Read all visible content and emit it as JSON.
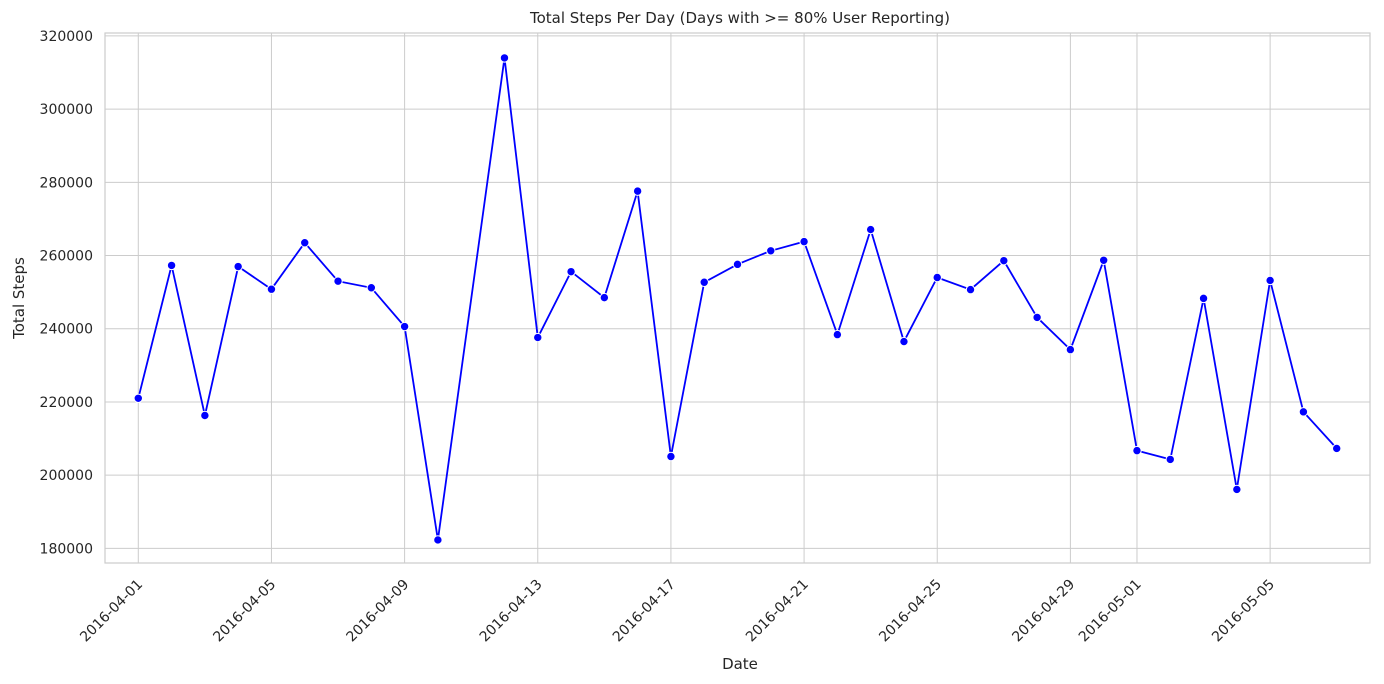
{
  "chart_data": {
    "type": "line",
    "title": "Total Steps Per Day (Days with >= 80% User Reporting)",
    "xlabel": "Date",
    "ylabel": "Total Steps",
    "grid": true,
    "ylim": [
      176000,
      320800
    ],
    "xlim": [
      "2016-03-31",
      "2016-05-08"
    ],
    "y_ticks": [
      180000,
      200000,
      220000,
      240000,
      260000,
      280000,
      300000,
      320000
    ],
    "x_ticks": [
      "2016-04-01",
      "2016-04-05",
      "2016-04-09",
      "2016-04-13",
      "2016-04-17",
      "2016-04-21",
      "2016-04-25",
      "2016-04-29",
      "2016-05-01",
      "2016-05-05"
    ],
    "colors": {
      "line": "#0000ff",
      "grid": "#cccccc"
    },
    "x": [
      "2016-04-01",
      "2016-04-02",
      "2016-04-03",
      "2016-04-04",
      "2016-04-05",
      "2016-04-06",
      "2016-04-07",
      "2016-04-08",
      "2016-04-09",
      "2016-04-10",
      "2016-04-12",
      "2016-04-13",
      "2016-04-14",
      "2016-04-15",
      "2016-04-16",
      "2016-04-17",
      "2016-04-18",
      "2016-04-19",
      "2016-04-20",
      "2016-04-21",
      "2016-04-22",
      "2016-04-23",
      "2016-04-24",
      "2016-04-25",
      "2016-04-26",
      "2016-04-27",
      "2016-04-28",
      "2016-04-29",
      "2016-04-30",
      "2016-05-01",
      "2016-05-02",
      "2016-05-03",
      "2016-05-04",
      "2016-05-05",
      "2016-05-06",
      "2016-05-07"
    ],
    "series": [
      {
        "values": [
          221000,
          257300,
          216300,
          257000,
          250800,
          263500,
          253000,
          251200,
          240600,
          182300,
          314000,
          237600,
          255600,
          248500,
          277600,
          205100,
          252700,
          257600,
          261300,
          263800,
          238400,
          267100,
          236500,
          254000,
          250700,
          258600,
          243100,
          234300,
          258700,
          206700,
          204300,
          248300,
          196100,
          253200,
          217300,
          207300
        ]
      }
    ]
  }
}
